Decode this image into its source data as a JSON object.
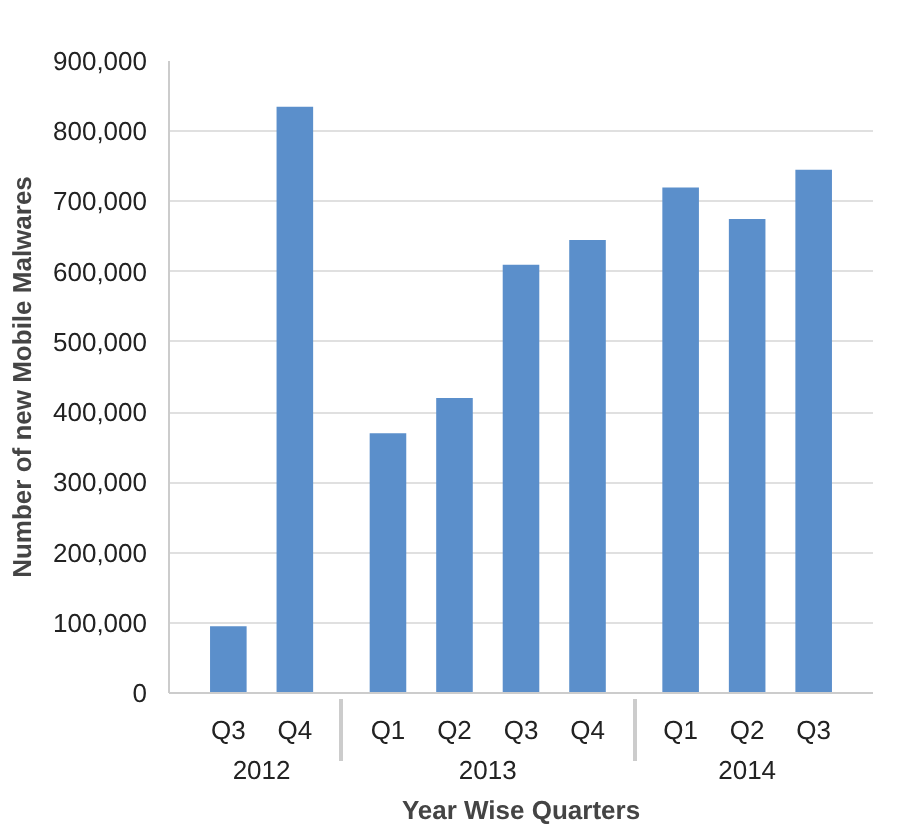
{
  "chart_data": {
    "type": "bar",
    "xlabel": "Year Wise Quarters",
    "ylabel": "Number of new Mobile Malwares",
    "categories": [
      "Q3",
      "Q4",
      "Q1",
      "Q2",
      "Q3",
      "Q4",
      "Q1",
      "Q2",
      "Q3"
    ],
    "annotations": [
      "2012",
      "2013",
      "2014"
    ],
    "values": [
      95000,
      835000,
      370000,
      420000,
      610000,
      645000,
      720000,
      675000,
      745000
    ],
    "color": "#5b8fcb",
    "ylim": [
      0,
      900000
    ],
    "yticks": [
      0,
      {
        "value": 100000,
        "label": "100,000"
      },
      {
        "value": 200000,
        "label": "200,000"
      },
      {
        "value": 300000,
        "label": "300,000"
      },
      {
        "value": 400000,
        "label": "400,000"
      },
      {
        "value": 500000,
        "label": "500,000"
      },
      {
        "value": 600000,
        "label": "600,000"
      },
      {
        "value": 700000,
        "label": "700,000"
      },
      {
        "value": 800000,
        "label": "800,000"
      },
      {
        "value": 900000,
        "label": "900,000"
      }
    ],
    "grid": "y"
  }
}
